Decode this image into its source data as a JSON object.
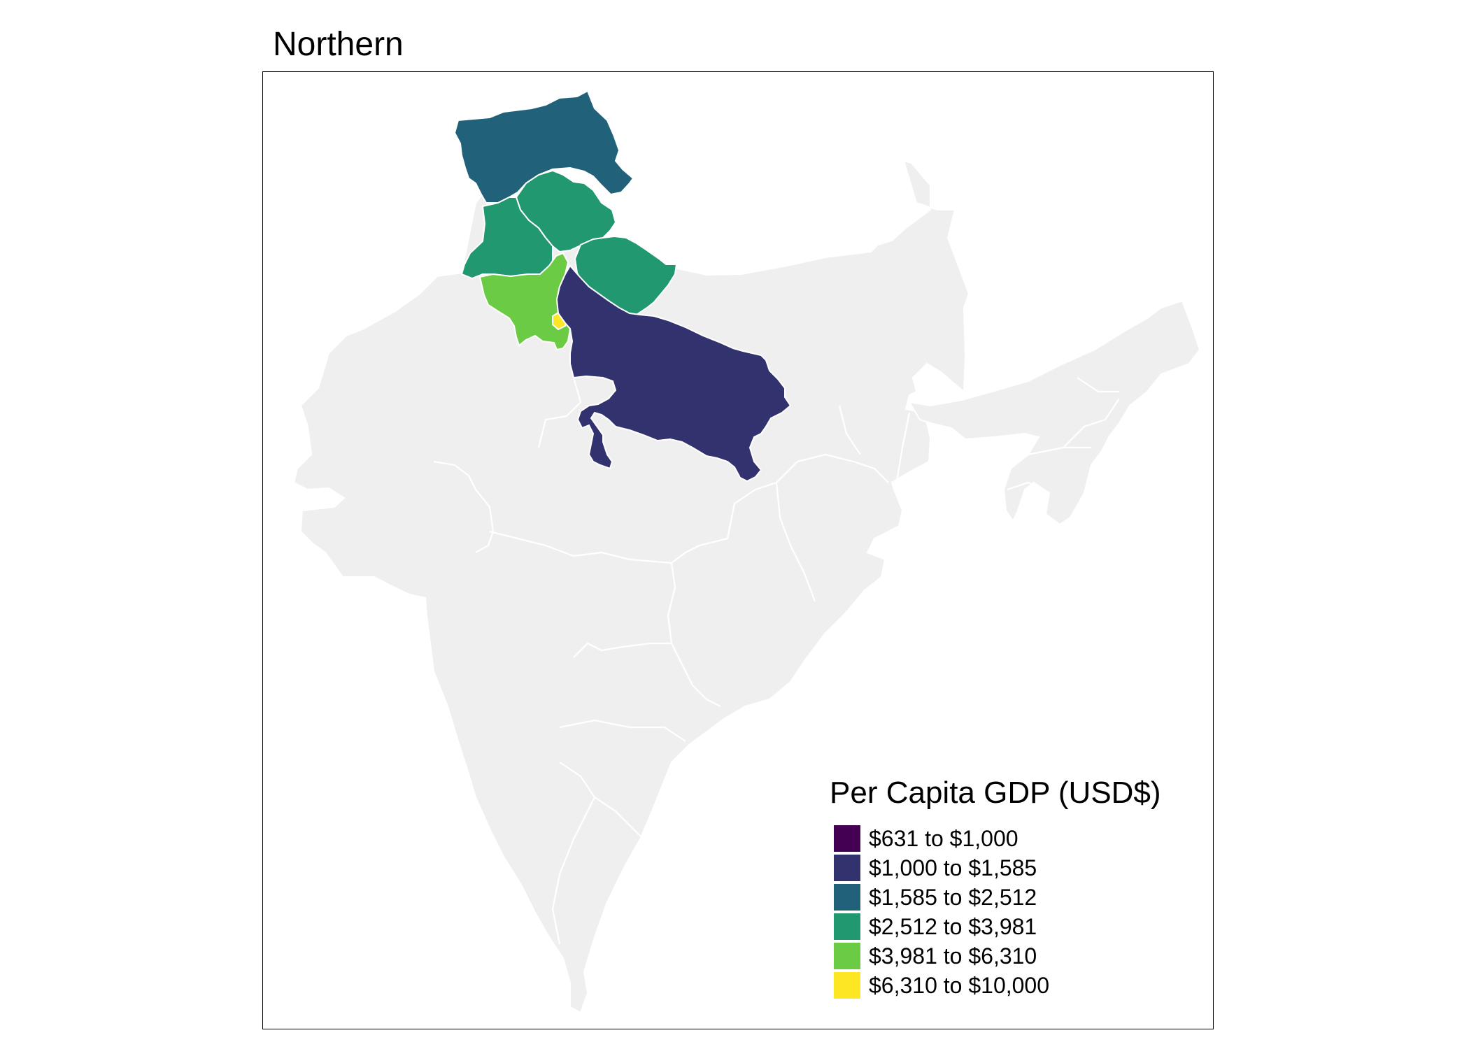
{
  "title": "Northern",
  "legend": {
    "title": "Per Capita GDP (USD$)",
    "items": [
      {
        "label": "$631 to $1,000",
        "color": "#440154"
      },
      {
        "label": "$1,000 to $1,585",
        "color": "#31326E"
      },
      {
        "label": "$1,585 to $2,512",
        "color": "#21627A"
      },
      {
        "label": "$2,512 to $3,981",
        "color": "#21986F"
      },
      {
        "label": "$3,981 to $6,310",
        "color": "#6BCB45"
      },
      {
        "label": "$6,310 to $10,000",
        "color": "#FDE725"
      }
    ]
  },
  "map": {
    "base_color": "#EFEFEF",
    "border_color": "#FFFFFF",
    "highlighted_regions": [
      {
        "region": "jammu-kashmir",
        "class": 2
      },
      {
        "region": "himachal-pradesh",
        "class": 3
      },
      {
        "region": "punjab",
        "class": 3
      },
      {
        "region": "uttarakhand",
        "class": 3
      },
      {
        "region": "haryana",
        "class": 4
      },
      {
        "region": "delhi",
        "class": 5
      },
      {
        "region": "uttar-pradesh",
        "class": 1
      }
    ]
  }
}
